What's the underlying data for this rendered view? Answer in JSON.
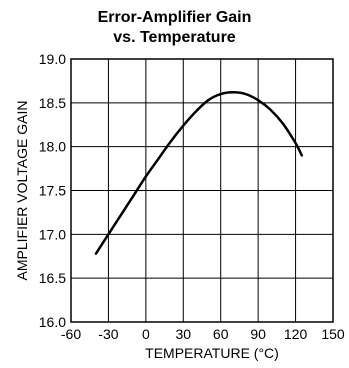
{
  "chart_data": {
    "type": "line",
    "title_lines": [
      "Error-Amplifier Gain",
      "vs. Temperature"
    ],
    "xlabel": "TEMPERATURE (°C)",
    "ylabel": "AMPLIFIER VOLTAGE GAIN",
    "xlim": [
      -60,
      150
    ],
    "ylim": [
      16.0,
      19.0
    ],
    "x_ticks": [
      -60,
      -30,
      0,
      30,
      60,
      90,
      120,
      150
    ],
    "y_ticks": [
      16.0,
      16.5,
      17.0,
      17.5,
      18.0,
      18.5,
      19.0
    ],
    "x_tick_labels": [
      "-60",
      "-30",
      "0",
      "30",
      "60",
      "90",
      "120",
      "150"
    ],
    "y_tick_labels": [
      "16.0",
      "16.5",
      "17.0",
      "17.5",
      "18.0",
      "18.5",
      "19.0"
    ],
    "grid": true,
    "series": [
      {
        "x": [
          -40,
          -30,
          -20,
          -10,
          0,
          10,
          20,
          30,
          40,
          50,
          60,
          70,
          80,
          90,
          100,
          110,
          120,
          125
        ],
        "y": [
          16.78,
          17.0,
          17.22,
          17.44,
          17.66,
          17.86,
          18.06,
          18.24,
          18.4,
          18.53,
          18.6,
          18.62,
          18.6,
          18.53,
          18.42,
          18.26,
          18.04,
          17.9
        ],
        "color": "#000000"
      }
    ]
  }
}
